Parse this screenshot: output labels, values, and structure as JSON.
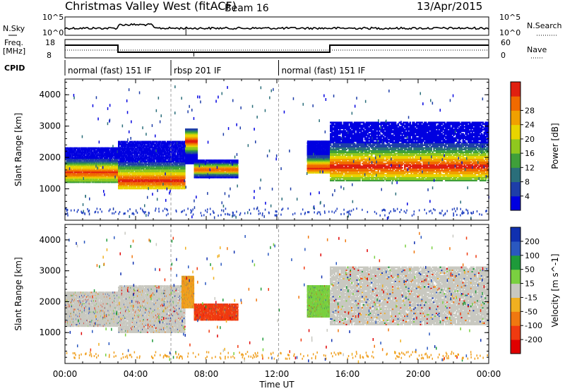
{
  "header": {
    "site": "Christmas Valley West (fitACF)",
    "beam": "Beam 16",
    "date": "13/Apr/2015"
  },
  "strips": {
    "nsky_label": "N.Sky",
    "nsearch_label": "N.Search",
    "nsky_ticks": [
      "10^5",
      "10^0"
    ],
    "nsearch_ticks": [
      "10^5",
      "10^0"
    ],
    "freq_label_1": "Freq.",
    "freq_label_2": "[MHz]",
    "freq_ticks": [
      "18",
      "8"
    ],
    "nave_label": "Nave",
    "nave_ticks": [
      "60",
      "0"
    ],
    "cpid_label": "CPID",
    "cpid_segments": [
      {
        "label": "normal (fast) 151 IF",
        "start": 0,
        "end": 6
      },
      {
        "label": "rbsp 201 IF",
        "start": 6,
        "end": 12.1
      },
      {
        "label": "normal (fast) 151 IF",
        "start": 12.1,
        "end": 24
      }
    ]
  },
  "chart_data": [
    {
      "type": "heatmap",
      "panel": "power",
      "xlabel": "",
      "ylabel": "Slant Range [km]",
      "xlim": [
        0,
        24
      ],
      "ylim": [
        0,
        4500
      ],
      "yticks": [
        1000,
        2000,
        3000,
        4000
      ],
      "colorbar_label": "Power [dB]",
      "colorbar_ticks": [
        "4",
        "8",
        "12",
        "16",
        "20",
        "24",
        "28"
      ],
      "colorbar_colors": [
        "#0000e0",
        "#1e3ea8",
        "#2a6e7a",
        "#3f9f3a",
        "#8fc81e",
        "#e8d400",
        "#f0a000",
        "#f06a00",
        "#e02010"
      ],
      "bands": [
        {
          "t0": 0,
          "t1": 3,
          "r0": 1200,
          "r1": 2300,
          "peak": 1500
        },
        {
          "t0": 3,
          "t1": 6.8,
          "r0": 1000,
          "r1": 2500,
          "peak": 1250
        },
        {
          "t0": 6.8,
          "t1": 7.5,
          "r0": 1800,
          "r1": 2900,
          "peak": 2500
        },
        {
          "t0": 7.3,
          "t1": 9.8,
          "r0": 1350,
          "r1": 1900,
          "peak": 1600
        },
        {
          "t0": 13.7,
          "t1": 15,
          "r0": 1500,
          "r1": 2500,
          "peak": 1650
        },
        {
          "t0": 15,
          "t1": 24,
          "r0": 1250,
          "r1": 3100,
          "peak": 1700
        }
      ]
    },
    {
      "type": "heatmap",
      "panel": "velocity",
      "xlabel": "Time UT",
      "ylabel": "Slant Range [km]",
      "xlim": [
        0,
        24
      ],
      "ylim": [
        0,
        4500
      ],
      "yticks": [
        1000,
        2000,
        3000,
        4000
      ],
      "xticks": [
        "00:00",
        "04:00",
        "08:00",
        "12:00",
        "16:00",
        "20:00",
        "00:00"
      ],
      "colorbar_label": "Velocity [m s^-1]",
      "colorbar_ticks": [
        "200",
        "100",
        "50",
        "15",
        "-15",
        "-50",
        "-100",
        "-200"
      ],
      "colorbar_colors": [
        "#1030b0",
        "#2a58c0",
        "#1e9a3a",
        "#7ad040",
        "#c8c8c0",
        "#f0b020",
        "#f07810",
        "#f03a10",
        "#e00000"
      ],
      "bands": [
        {
          "t0": 0,
          "t1": 3,
          "r0": 1200,
          "r1": 2300,
          "color": "#c8c8c0"
        },
        {
          "t0": 3,
          "t1": 6.8,
          "r0": 1000,
          "r1": 2500,
          "color": "#c8c8c0"
        },
        {
          "t0": 6.6,
          "t1": 7.3,
          "r0": 1800,
          "r1": 2800,
          "color": "#f0a020"
        },
        {
          "t0": 7.3,
          "t1": 9.8,
          "r0": 1400,
          "r1": 1900,
          "color": "#f03a10"
        },
        {
          "t0": 13.7,
          "t1": 15,
          "r0": 1500,
          "r1": 2500,
          "color": "#7ad040"
        },
        {
          "t0": 15,
          "t1": 24,
          "r0": 1250,
          "r1": 3100,
          "color": "#c8c8c0"
        }
      ]
    }
  ]
}
